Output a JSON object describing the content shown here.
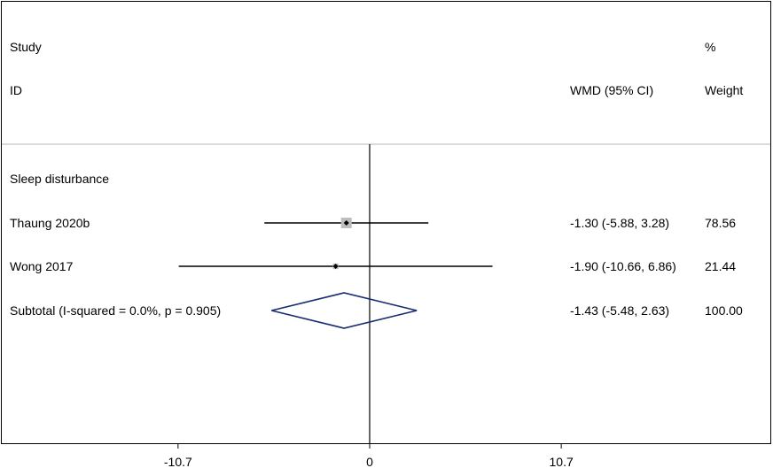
{
  "chart_data": {
    "type": "forest",
    "header": {
      "study_line1": "Study",
      "study_line2": "ID",
      "effect_label": "WMD (95% CI)",
      "weight_line1": "%",
      "weight_line2": "Weight"
    },
    "subgroup": "Sleep disturbance",
    "studies": [
      {
        "label": "Thaung 2020b",
        "est": -1.3,
        "lo": -5.88,
        "hi": 3.28,
        "ci_text": "-1.30 (-5.88, 3.28)",
        "weight": 78.56,
        "weight_text": "78.56"
      },
      {
        "label": "Wong 2017",
        "est": -1.9,
        "lo": -10.66,
        "hi": 6.86,
        "ci_text": "-1.90 (-10.66, 6.86)",
        "weight": 21.44,
        "weight_text": "21.44"
      }
    ],
    "subtotal": {
      "label": "Subtotal  (I-squared = 0.0%, p = 0.905)",
      "est": -1.43,
      "lo": -5.48,
      "hi": 2.63,
      "ci_text": "-1.43 (-5.48, 2.63)",
      "weight_text": "100.00"
    },
    "xticks": [
      -10.7,
      0,
      10.7
    ],
    "xtick_labels": [
      "-10.7",
      "0",
      "10.7"
    ],
    "xlim": [
      -10.7,
      10.7
    ],
    "null_line": 0,
    "colors": {
      "diamond": "#1a2d6e",
      "box": "#bdbdbd",
      "header_rule": "#b5b5b5"
    }
  }
}
